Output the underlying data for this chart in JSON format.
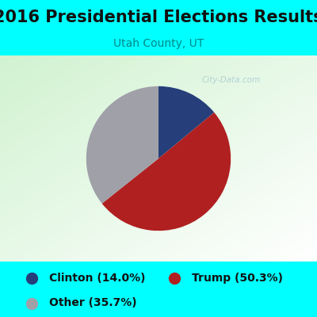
{
  "title": "2016 Presidential Elections Results",
  "subtitle": "Utah County, UT",
  "slices": [
    14.0,
    50.3,
    35.7
  ],
  "labels": [
    "Clinton (14.0%)",
    "Trump (50.3%)",
    "Other (35.7%)"
  ],
  "colors": [
    "#263f7a",
    "#b02020",
    "#a0a0a8"
  ],
  "background_color": "#00ffff",
  "chart_bg_topleft": [
    0.82,
    0.95,
    0.82
  ],
  "chart_bg_bottomright": [
    1.0,
    1.0,
    1.0
  ],
  "title_fontsize": 15,
  "subtitle_fontsize": 10,
  "legend_fontsize": 10,
  "title_color": "#111111",
  "subtitle_color": "#008888",
  "legend_color": "#111111",
  "watermark": "City-Data.com",
  "watermark_color": "#a8ccd0",
  "startangle": 90
}
